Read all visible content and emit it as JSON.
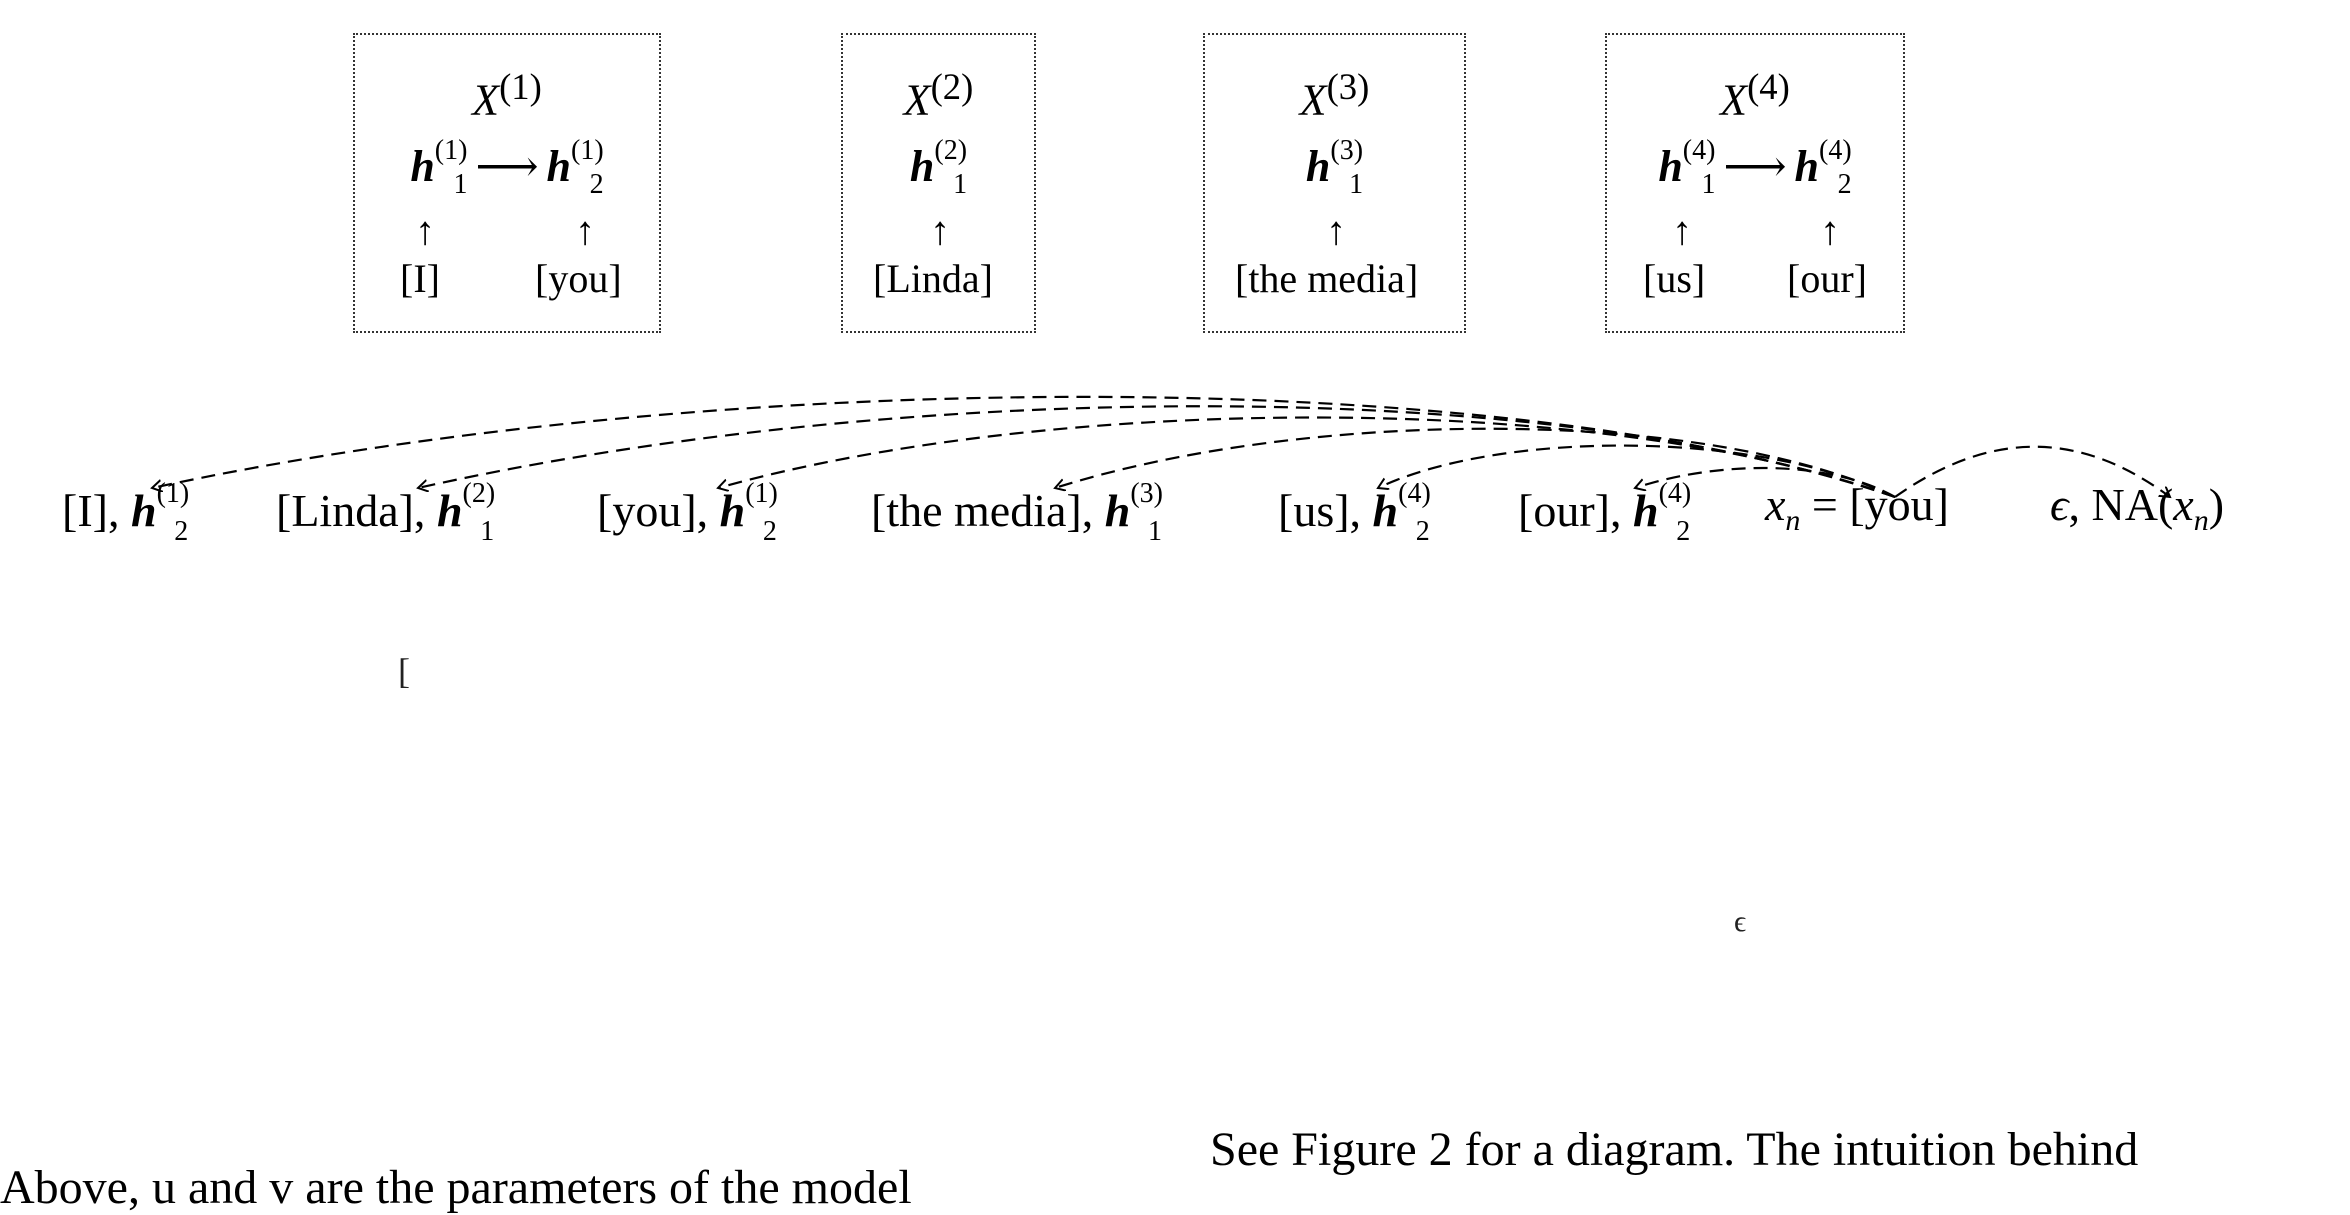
{
  "clusters": [
    {
      "title": "X",
      "index": "(1)",
      "mentions": [
        "I",
        "you"
      ]
    },
    {
      "title": "X",
      "index": "(2)",
      "mentions": [
        "Linda"
      ]
    },
    {
      "title": "X",
      "index": "(3)",
      "mentions": [
        "the media"
      ]
    },
    {
      "title": "X",
      "index": "(4)",
      "mentions": [
        "us",
        "our"
      ]
    }
  ],
  "h_symbol": "h",
  "labels": {
    "c1_w1": "[I]",
    "c1_w2": "[you]",
    "c2_w1": "[Linda]",
    "c3_w1": "[the media]",
    "c4_w1": "[us]",
    "c4_w2": "[our]",
    "arrow_right": "⟶",
    "arrow_up": "↑"
  },
  "antecedents": {
    "a1_word": "[I], ",
    "a1_sub": "2",
    "a1_sup": "(1)",
    "a2_word": "[Linda], ",
    "a2_sub": "1",
    "a2_sup": "(2)",
    "a3_word": "[you], ",
    "a3_sub": "2",
    "a3_sup": "(1)",
    "a4_word": "[the media], ",
    "a4_sub": "1",
    "a4_sup": "(3)",
    "a5_word": "[us], ",
    "a5_sub": "2",
    "a5_sup": "(4)",
    "a6_word": "[our], ",
    "a6_sub": "2",
    "a6_sup": "(4)",
    "mention_var": "x",
    "mention_sub": "n",
    "mention_eq": " = [you]",
    "eps": "ϵ",
    "na_text": ", NA(",
    "na_var": "x",
    "na_sub": "n",
    "na_close": ")"
  },
  "fragments": {
    "f1": "[",
    "f2": "ϵ"
  },
  "paragraphs": {
    "left": "Above, u and v are the parameters of the model",
    "right": "See Figure 2 for a diagram.  The intuition behind"
  }
}
